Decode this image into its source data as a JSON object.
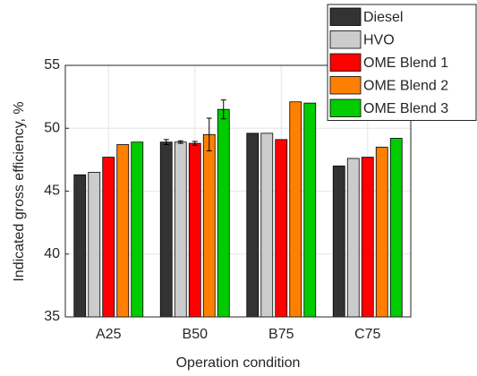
{
  "chart_data": {
    "type": "bar",
    "xlabel": "Operation condition",
    "ylabel": "Indicated gross efficiency, %",
    "categories": [
      "A25",
      "B50",
      "B75",
      "C75"
    ],
    "ylim": [
      35,
      55
    ],
    "yticks": [
      35,
      40,
      45,
      50,
      55
    ],
    "grid": true,
    "legend": "outside upper right",
    "series": [
      {
        "name": "Diesel",
        "color": "#333333",
        "values": [
          46.3,
          48.9,
          49.6,
          47.0
        ],
        "errors": [
          null,
          0.2,
          null,
          null
        ]
      },
      {
        "name": "HVO",
        "color": "#cccccc",
        "values": [
          46.5,
          48.9,
          49.6,
          47.6
        ],
        "errors": [
          null,
          0.1,
          null,
          null
        ]
      },
      {
        "name": "OME Blend 1",
        "color": "#ff0000",
        "values": [
          47.7,
          48.8,
          49.1,
          47.7
        ],
        "errors": [
          null,
          0.15,
          null,
          null
        ]
      },
      {
        "name": "OME Blend 2",
        "color": "#ff8000",
        "values": [
          48.7,
          49.5,
          52.1,
          48.5
        ],
        "errors": [
          null,
          1.3,
          null,
          null
        ]
      },
      {
        "name": "OME Blend 3",
        "color": "#00cc00",
        "values": [
          48.9,
          51.5,
          52.0,
          49.2
        ],
        "errors": [
          null,
          0.75,
          null,
          null
        ]
      }
    ]
  }
}
